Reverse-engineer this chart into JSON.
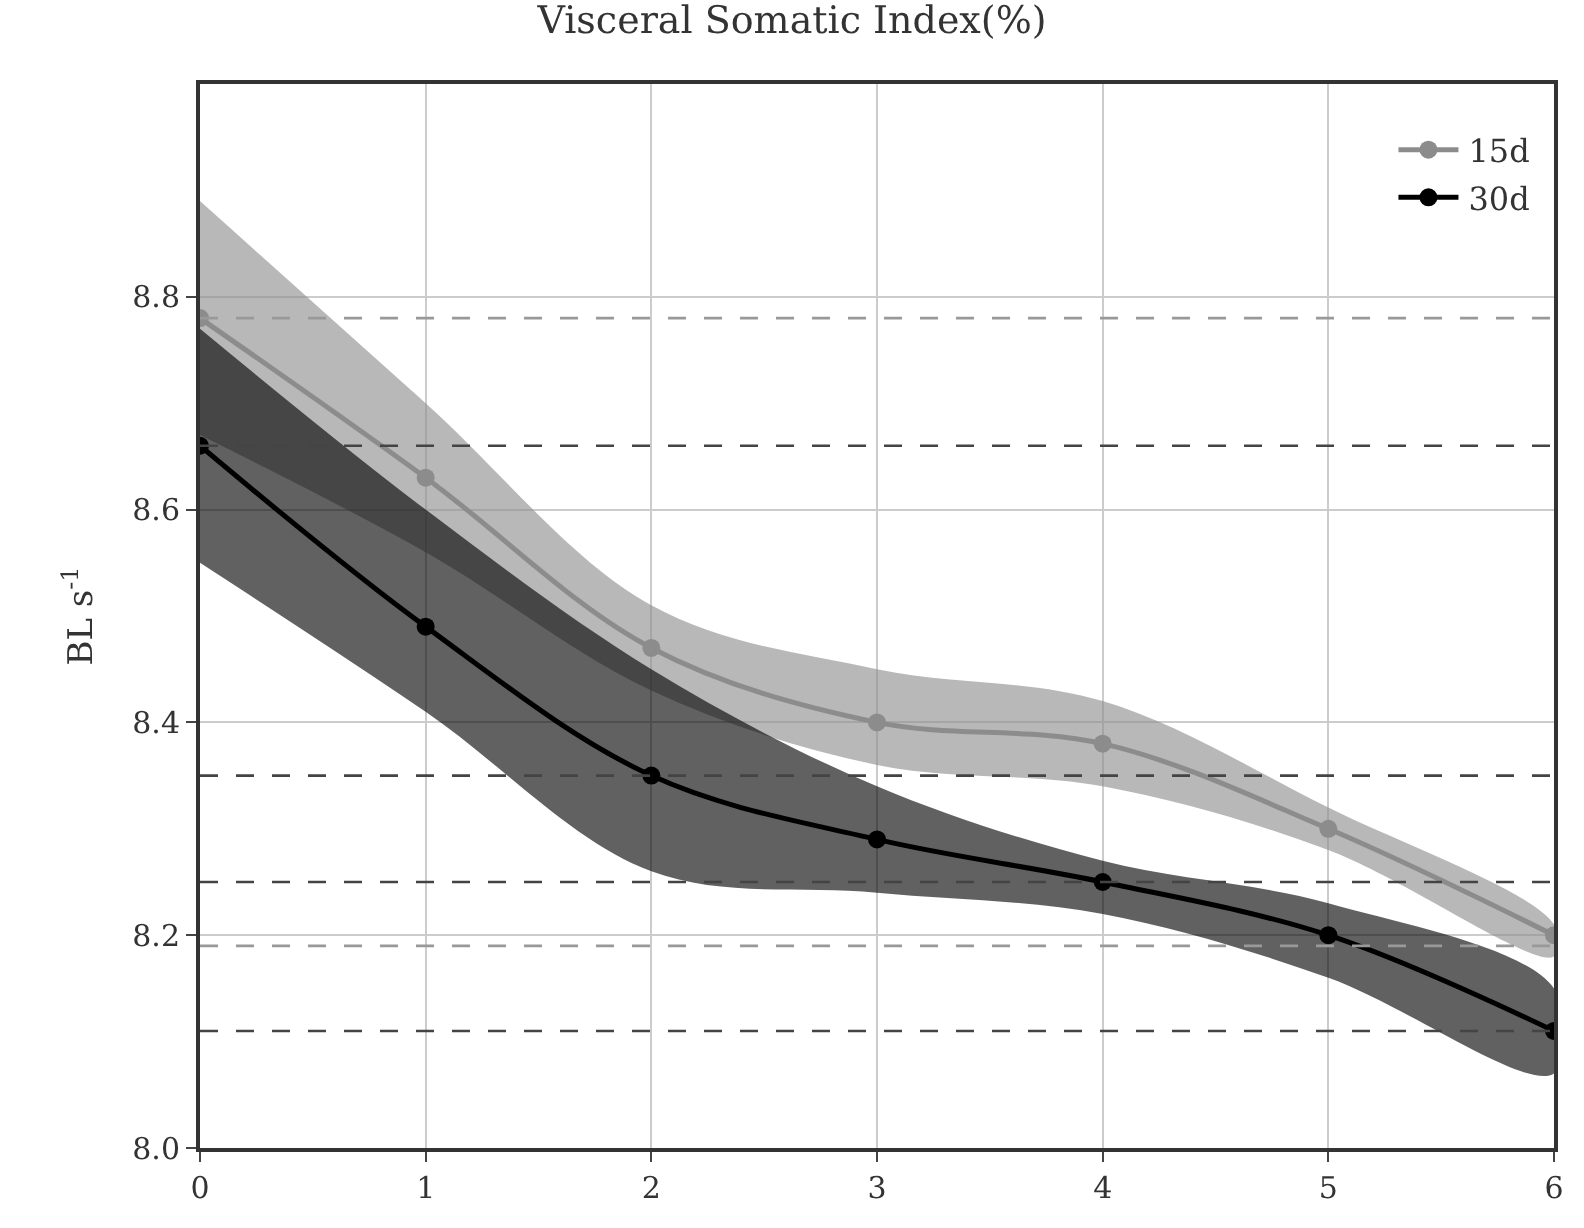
{
  "chart_data": {
    "type": "line",
    "title": "Visceral Somatic Index(%)",
    "ylabel": "BL s$^{-1}$",
    "x": [
      0,
      1,
      2,
      3,
      4,
      5,
      6
    ],
    "series": [
      {
        "name": "15d",
        "color": "#8c8c8c",
        "values": [
          8.78,
          8.63,
          8.47,
          8.4,
          8.38,
          8.3,
          8.2
        ],
        "lower": [
          8.67,
          8.56,
          8.43,
          8.36,
          8.34,
          8.28,
          8.18
        ],
        "upper": [
          8.89,
          8.7,
          8.51,
          8.45,
          8.42,
          8.32,
          8.21
        ]
      },
      {
        "name": "30d",
        "color": "#000000",
        "values": [
          8.66,
          8.49,
          8.35,
          8.29,
          8.25,
          8.2,
          8.11
        ],
        "lower": [
          8.55,
          8.41,
          8.26,
          8.24,
          8.22,
          8.16,
          8.07
        ],
        "upper": [
          8.77,
          8.6,
          8.45,
          8.34,
          8.27,
          8.23,
          8.15
        ]
      }
    ],
    "xlim": [
      0,
      6
    ],
    "xticks": [
      0,
      1,
      2,
      3,
      4,
      5,
      6
    ],
    "ylim": [
      8.0,
      9.0
    ],
    "yticks": [
      {
        "value": 8.0,
        "label": "8.0"
      },
      8.2,
      8.4,
      8.6,
      8.8
    ],
    "ref_lines": [
      {
        "axis": "y",
        "value": 8.78,
        "color": "#999999",
        "line_style": "dashed"
      },
      {
        "axis": "y",
        "value": 8.66,
        "color": "#444444",
        "line_style": "dashed"
      },
      {
        "axis": "y",
        "value": 8.35,
        "color": "#444444",
        "line_style": "dashed"
      },
      {
        "axis": "y",
        "value": 8.25,
        "color": "#444444",
        "line_style": "dashed"
      },
      {
        "axis": "y",
        "value": 8.19,
        "color": "#999999",
        "line_style": "dashed"
      },
      {
        "axis": "y",
        "value": 8.11,
        "color": "#444444",
        "line_style": "dashed"
      }
    ],
    "grid": true,
    "legend": "top right",
    "marker": "circle",
    "line_style": "solid"
  }
}
